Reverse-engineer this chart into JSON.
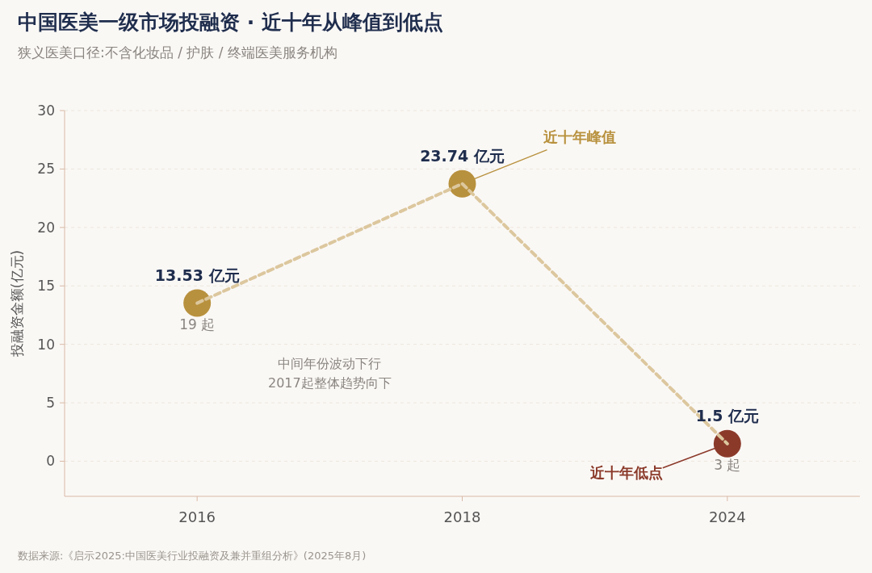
{
  "chart_data": {
    "type": "line",
    "title": "中国医美一级市场投融资 · 近十年从峰值到低点",
    "subtitle": "狭义医美口径:不含化妆品 / 护肤 / 终端医美服务机构",
    "ylabel": "投融资金额(亿元)",
    "categories": [
      "2016",
      "2018",
      "2024"
    ],
    "values": [
      13.53,
      23.74,
      1.5
    ],
    "value_labels": [
      "13.53 亿元",
      "23.74 亿元",
      "1.5 亿元"
    ],
    "colors": [
      "#b8913e",
      "#b8913e",
      "#8b3a2a"
    ],
    "color": "#dcc79e",
    "line_style": "dashed",
    "marker": "circle",
    "grid": "y",
    "ylim": [
      -3,
      30
    ],
    "yticks": [
      0,
      5,
      10,
      15,
      20,
      25,
      30
    ],
    "annotations": [
      {
        "text": "19 起",
        "x": "2016",
        "y": 13.53
      },
      {
        "text": "3 起",
        "x": "2024",
        "y": 1.5
      },
      {
        "text": "近十年峰值",
        "x": "2018",
        "y": 23.74
      },
      {
        "text": "近十年低点",
        "x": "2024",
        "y": 1.5
      },
      "中间年份波动下行",
      "2017起整体趋势向下",
      "数据来源:《启示2025:中国医美行业投融资及兼并重组分析》(2025年8月)"
    ]
  }
}
